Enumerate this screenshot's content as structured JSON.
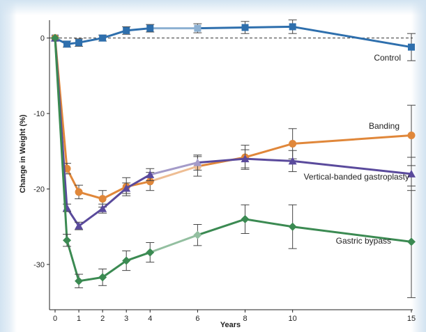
{
  "chart_data": {
    "type": "line",
    "xlabel": "Years",
    "ylabel": "Change in Weight (%)",
    "x_ticks": [
      0,
      1,
      2,
      3,
      4,
      6,
      8,
      10,
      15
    ],
    "y_ticks": [
      0,
      -10,
      -20,
      -30
    ],
    "xlim": [
      0,
      15
    ],
    "ylim": [
      -36,
      2
    ],
    "baseline": 0,
    "series": [
      {
        "name": "Control",
        "color": "#2e6fad",
        "marker": "square",
        "x": [
          0,
          0.5,
          1,
          2,
          3,
          4,
          6,
          8,
          10,
          15
        ],
        "y": [
          0,
          -0.8,
          -0.6,
          0,
          1.0,
          1.3,
          1.3,
          1.4,
          1.5,
          -1.2
        ],
        "err": [
          0,
          0.4,
          0.5,
          0.4,
          0.5,
          0.5,
          0.6,
          0.8,
          0.9,
          1.8
        ],
        "faded_x": [
          4,
          6
        ]
      },
      {
        "name": "Banding",
        "color": "#e0873a",
        "marker": "circle",
        "x": [
          0,
          0.5,
          1,
          2,
          3,
          4,
          6,
          8,
          10,
          15
        ],
        "y": [
          0,
          -17.3,
          -20.4,
          -21.3,
          -19.7,
          -19.0,
          -17.0,
          -15.8,
          -14.0,
          -12.9
        ],
        "err": [
          0,
          0.7,
          0.9,
          1.1,
          1.2,
          1.2,
          1.3,
          1.6,
          2.0,
          4.0
        ],
        "faded_x": [
          4,
          6
        ]
      },
      {
        "name": "Vertical-banded gastroplasty",
        "color": "#5a4a9c",
        "marker": "triangle",
        "x": [
          0,
          0.5,
          1,
          2,
          3,
          4,
          6,
          8,
          10,
          15
        ],
        "y": [
          0,
          -22.5,
          -24.9,
          -22.6,
          -19.9,
          -18.1,
          -16.5,
          -16.0,
          -16.3,
          -18.0
        ],
        "err": [
          0,
          0.5,
          0.5,
          0.6,
          0.7,
          0.8,
          1.0,
          1.2,
          1.4,
          2.2
        ],
        "faded_x": [
          4,
          6
        ]
      },
      {
        "name": "Gastric bypass",
        "color": "#3b8a52",
        "marker": "diamond",
        "x": [
          0,
          0.5,
          1,
          2,
          3,
          4,
          6,
          8,
          10,
          15
        ],
        "y": [
          0,
          -26.8,
          -32.2,
          -31.7,
          -29.5,
          -28.4,
          -26.1,
          -24.0,
          -25.0,
          -27.0
        ],
        "err": [
          0,
          0.8,
          0.9,
          1.1,
          1.3,
          1.3,
          1.4,
          1.9,
          2.9,
          7.4
        ],
        "faded_x": [
          4,
          6
        ]
      }
    ]
  }
}
